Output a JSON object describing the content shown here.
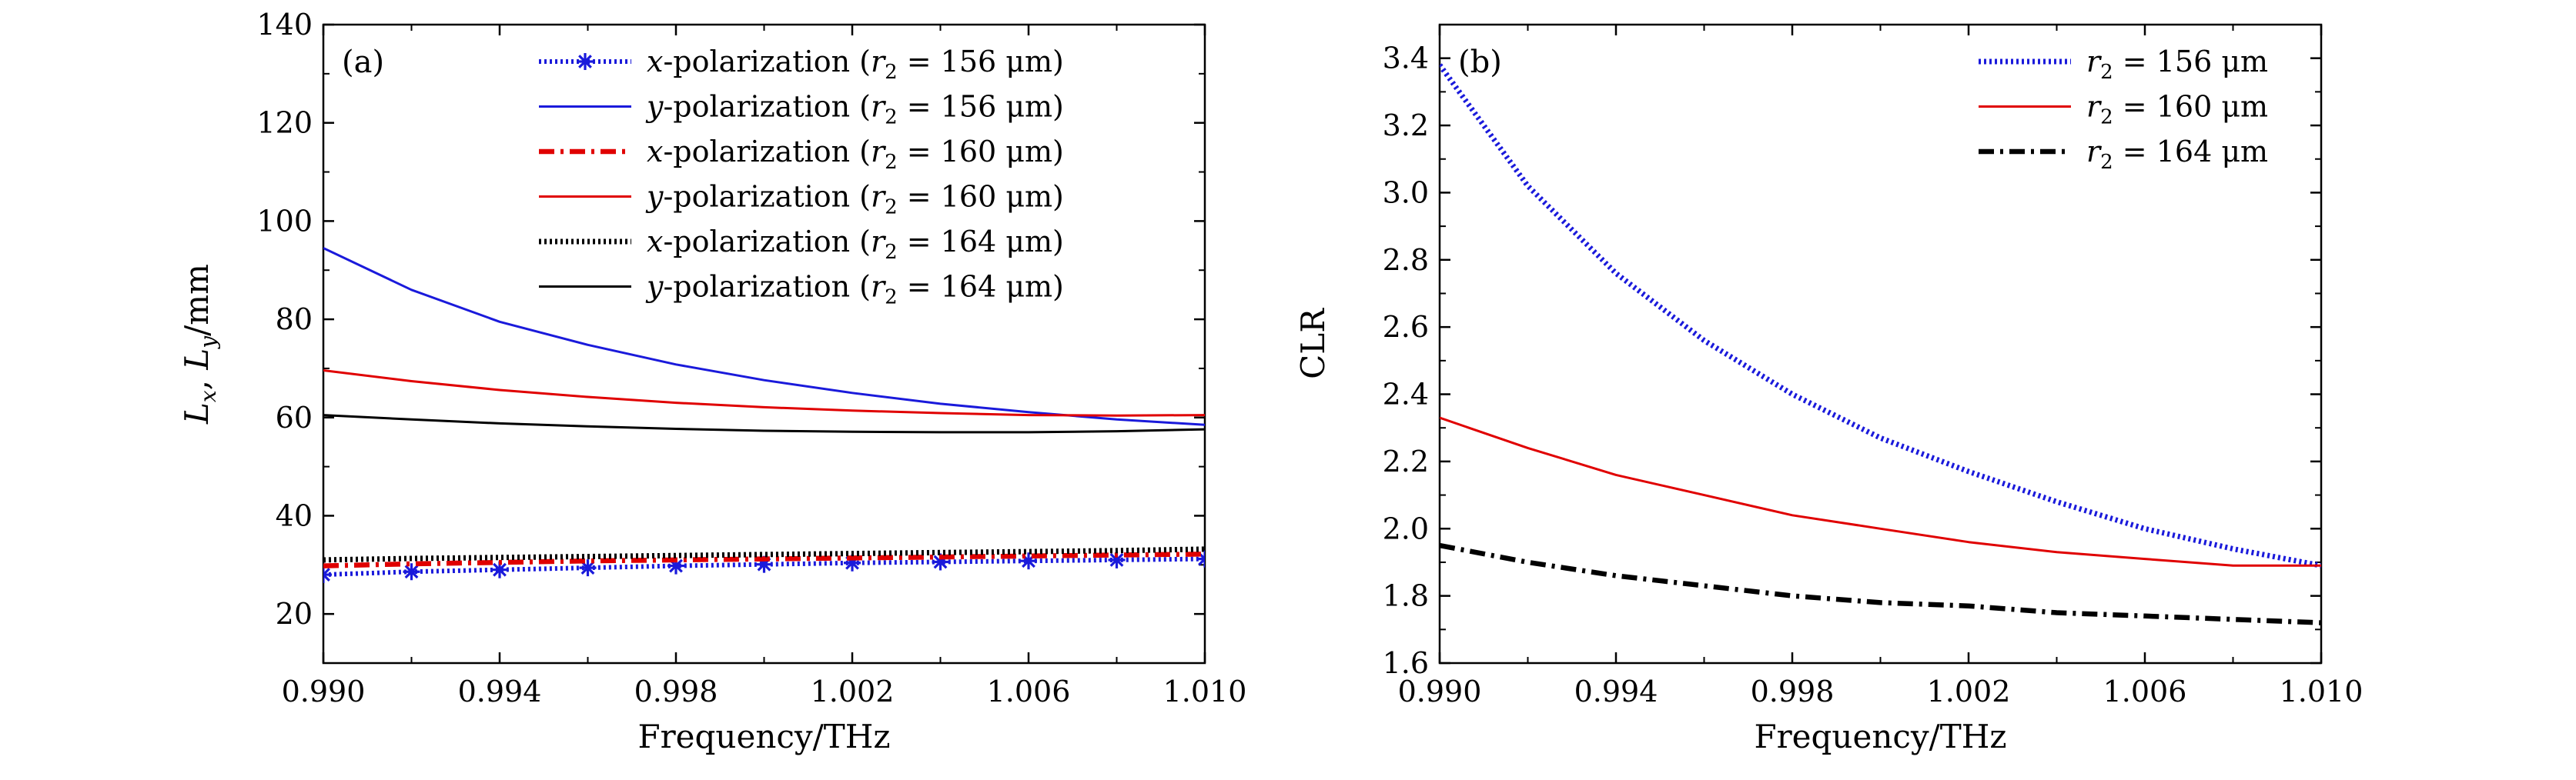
{
  "chart_data": [
    {
      "type": "line",
      "panel_label": "(a)",
      "xlabel": "Frequency/THz",
      "ylabel": "L_x, L_y/mm",
      "ylabel_parts": [
        "L",
        "x",
        ", ",
        "L",
        "y",
        "/mm"
      ],
      "xlim": [
        0.99,
        1.01
      ],
      "ylim": [
        10,
        140
      ],
      "x_ticks": [
        "0.990",
        "0.994",
        "0.998",
        "1.002",
        "1.006",
        "1.010"
      ],
      "y_ticks": [
        "20",
        "40",
        "60",
        "80",
        "100",
        "120",
        "140"
      ],
      "legend_position": "top-right",
      "x": [
        0.99,
        0.992,
        0.994,
        0.996,
        0.998,
        1.0,
        1.002,
        1.004,
        1.006,
        1.008,
        1.01
      ],
      "series": [
        {
          "name": "x-polarization (r2 = 156 μm)",
          "legend": {
            "pol": "x",
            "r": "156"
          },
          "color": "#1a1adb",
          "style": "dotted-star",
          "values": [
            28.0,
            28.6,
            29.0,
            29.4,
            29.8,
            30.1,
            30.4,
            30.6,
            30.8,
            31.0,
            31.2
          ]
        },
        {
          "name": "y-polarization (r2 = 156 μm)",
          "legend": {
            "pol": "y",
            "r": "156"
          },
          "color": "#1a1adb",
          "style": "solid",
          "values": [
            94.5,
            86.0,
            79.5,
            74.8,
            70.8,
            67.6,
            65.0,
            62.8,
            61.1,
            59.6,
            58.5
          ]
        },
        {
          "name": "x-polarization (r2 = 160 μm)",
          "legend": {
            "pol": "x",
            "r": "160"
          },
          "color": "#e00000",
          "style": "dashdot-thick",
          "values": [
            29.8,
            30.2,
            30.5,
            30.8,
            31.0,
            31.2,
            31.4,
            31.6,
            31.8,
            32.0,
            32.2
          ]
        },
        {
          "name": "y-polarization (r2 = 160 μm)",
          "legend": {
            "pol": "y",
            "r": "160"
          },
          "color": "#e00000",
          "style": "solid",
          "values": [
            69.6,
            67.4,
            65.6,
            64.2,
            63.0,
            62.1,
            61.4,
            60.9,
            60.5,
            60.4,
            60.5
          ]
        },
        {
          "name": "x-polarization (r2 = 164 μm)",
          "legend": {
            "pol": "x",
            "r": "164"
          },
          "color": "#000000",
          "style": "dotted-thick",
          "values": [
            31.0,
            31.3,
            31.5,
            31.7,
            31.9,
            32.1,
            32.3,
            32.5,
            32.7,
            32.9,
            33.2
          ]
        },
        {
          "name": "y-polarization (r2 = 164 μm)",
          "legend": {
            "pol": "y",
            "r": "164"
          },
          "color": "#000000",
          "style": "solid",
          "values": [
            60.5,
            59.6,
            58.8,
            58.2,
            57.7,
            57.3,
            57.1,
            57.0,
            57.0,
            57.2,
            57.6
          ]
        }
      ]
    },
    {
      "type": "line",
      "panel_label": "(b)",
      "xlabel": "Frequency/THz",
      "ylabel": "CLR",
      "xlim": [
        0.99,
        1.01
      ],
      "ylim": [
        1.6,
        3.5
      ],
      "x_ticks": [
        "0.990",
        "0.994",
        "0.998",
        "1.002",
        "1.006",
        "1.010"
      ],
      "y_ticks": [
        "1.6",
        "1.8",
        "2.0",
        "2.2",
        "2.4",
        "2.6",
        "2.8",
        "3.0",
        "3.2",
        "3.4"
      ],
      "legend_position": "top-right",
      "x": [
        0.99,
        0.992,
        0.994,
        0.996,
        0.998,
        1.0,
        1.002,
        1.004,
        1.006,
        1.008,
        1.01
      ],
      "series": [
        {
          "name": "r2 = 156 μm",
          "legend": {
            "r": "156"
          },
          "color": "#1a1adb",
          "style": "dotted-thick",
          "values": [
            3.38,
            3.02,
            2.76,
            2.56,
            2.4,
            2.27,
            2.17,
            2.08,
            2.0,
            1.94,
            1.89
          ]
        },
        {
          "name": "r2 = 160 μm",
          "legend": {
            "r": "160"
          },
          "color": "#e00000",
          "style": "solid",
          "values": [
            2.33,
            2.24,
            2.16,
            2.1,
            2.04,
            2.0,
            1.96,
            1.93,
            1.91,
            1.89,
            1.89
          ]
        },
        {
          "name": "r2 = 164 μm",
          "legend": {
            "r": "164"
          },
          "color": "#000000",
          "style": "dashdot-thick",
          "values": [
            1.95,
            1.9,
            1.86,
            1.83,
            1.8,
            1.78,
            1.77,
            1.75,
            1.74,
            1.73,
            1.72
          ]
        }
      ]
    }
  ]
}
